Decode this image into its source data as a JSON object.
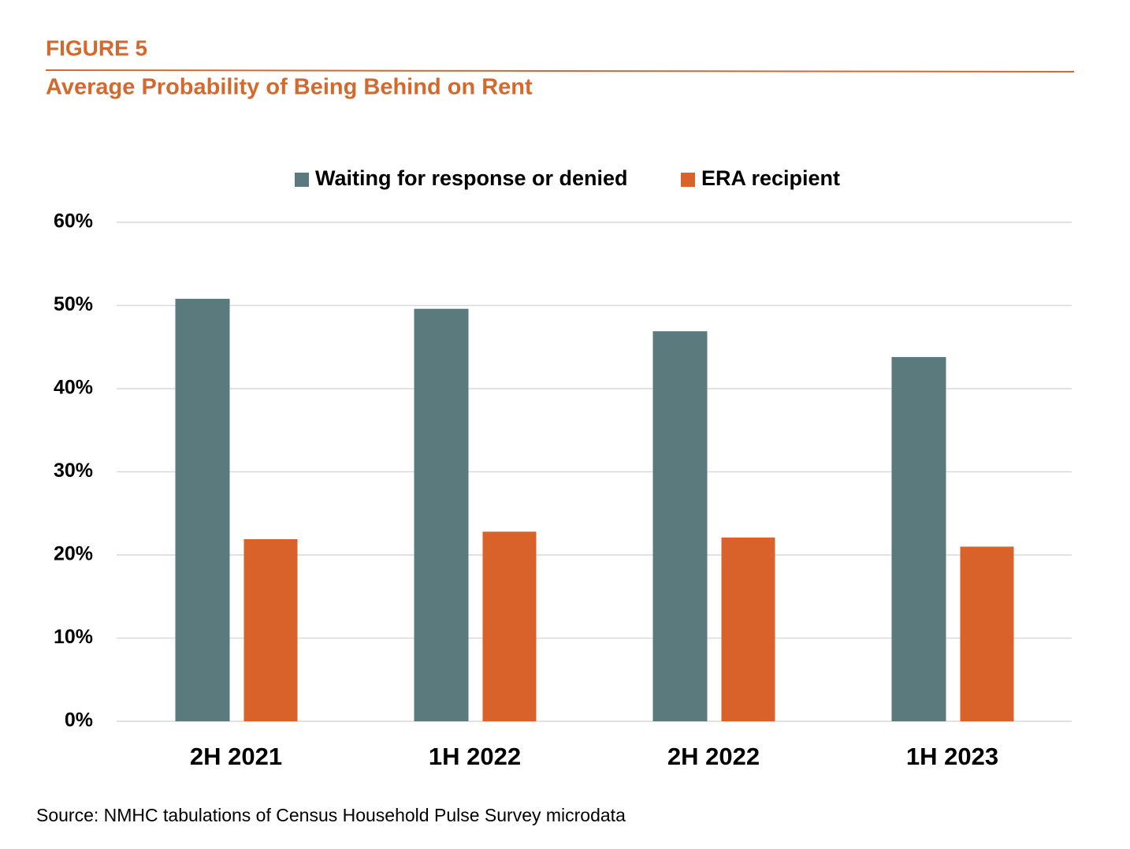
{
  "chart_data": {
    "type": "bar",
    "figure_label": "FIGURE 5",
    "title": "Average Probability of Being Behind on Rent",
    "source": "Source: NMHC tabulations of Census Household Pulse Survey microdata",
    "categories": [
      "2H 2021",
      "1H 2022",
      "2H 2022",
      "1H 2023"
    ],
    "series": [
      {
        "name": "Waiting for response or denied",
        "color": "#5b7a7e",
        "values": [
          50.8,
          49.6,
          46.9,
          43.8
        ]
      },
      {
        "name": "ERA recipient",
        "color": "#d9622b",
        "values": [
          21.9,
          22.8,
          22.1,
          21.0
        ]
      }
    ],
    "ylim": [
      0,
      60
    ],
    "yticks": [
      {
        "value": 0,
        "label": "0%"
      },
      {
        "value": 10,
        "label": "10%"
      },
      {
        "value": 20,
        "label": "20%"
      },
      {
        "value": 30,
        "label": "30%"
      },
      {
        "value": 40,
        "label": "40%"
      },
      {
        "value": 50,
        "label": "50%"
      },
      {
        "value": 60,
        "label": "60%"
      }
    ],
    "grid": true,
    "legend": "top"
  }
}
